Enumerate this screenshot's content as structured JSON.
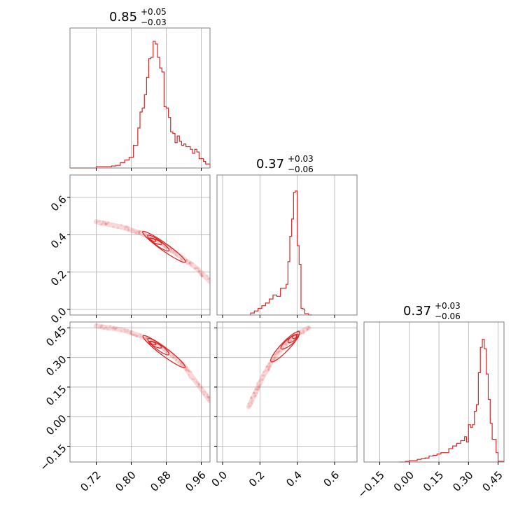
{
  "chart_data": {
    "type": "corner",
    "color": "#d62728",
    "grid": true,
    "titles": [
      {
        "value": "0.85",
        "plus": "+0.05",
        "minus": "−0.03"
      },
      {
        "value": "0.37",
        "plus": "+0.03",
        "minus": "−0.06"
      },
      {
        "value": "0.37",
        "plus": "+0.03",
        "minus": "−0.06"
      }
    ],
    "axes": [
      {
        "range": [
          0.66,
          0.98
        ],
        "ticks": [
          {
            "v": 0.72,
            "label": "0.72"
          },
          {
            "v": 0.8,
            "label": "0.80"
          },
          {
            "v": 0.88,
            "label": "0.88"
          },
          {
            "v": 0.96,
            "label": "0.96"
          }
        ]
      },
      {
        "range": [
          -0.03,
          0.72
        ],
        "ticks": [
          {
            "v": 0.0,
            "label": "0.0"
          },
          {
            "v": 0.2,
            "label": "0.2"
          },
          {
            "v": 0.4,
            "label": "0.4"
          },
          {
            "v": 0.6,
            "label": "0.6"
          }
        ]
      },
      {
        "range": [
          -0.23,
          0.48
        ],
        "ticks": [
          {
            "v": -0.15,
            "label": "−0.15"
          },
          {
            "v": 0.0,
            "label": "0.00"
          },
          {
            "v": 0.15,
            "label": "0.15"
          },
          {
            "v": 0.3,
            "label": "0.30"
          },
          {
            "v": 0.45,
            "label": "0.45"
          }
        ]
      }
    ],
    "histograms": [
      {
        "param": 0,
        "ymax": 1.05,
        "edges": [
          0.66,
          0.68,
          0.7,
          0.72,
          0.74,
          0.755,
          0.765,
          0.775,
          0.785,
          0.795,
          0.805,
          0.815,
          0.82,
          0.825,
          0.83,
          0.835,
          0.84,
          0.845,
          0.85,
          0.855,
          0.86,
          0.865,
          0.87,
          0.875,
          0.88,
          0.885,
          0.89,
          0.895,
          0.9,
          0.905,
          0.91,
          0.915,
          0.92,
          0.925,
          0.93,
          0.935,
          0.94,
          0.945,
          0.95,
          0.955,
          0.96,
          0.965,
          0.97,
          0.98
        ],
        "counts": [
          0.0,
          0.0,
          0.0,
          0.01,
          0.01,
          0.015,
          0.02,
          0.04,
          0.06,
          0.08,
          0.17,
          0.3,
          0.42,
          0.45,
          0.55,
          0.68,
          0.82,
          0.83,
          0.95,
          0.93,
          0.83,
          0.75,
          0.72,
          0.46,
          0.45,
          0.38,
          0.27,
          0.26,
          0.19,
          0.24,
          0.2,
          0.17,
          0.18,
          0.16,
          0.16,
          0.14,
          0.11,
          0.14,
          0.12,
          0.07,
          0.07,
          0.05,
          0.03
        ]
      },
      {
        "param": 1,
        "ymax": 1.05,
        "edges": [
          0.15,
          0.17,
          0.19,
          0.21,
          0.23,
          0.25,
          0.27,
          0.29,
          0.31,
          0.33,
          0.34,
          0.35,
          0.36,
          0.37,
          0.38,
          0.39,
          0.4,
          0.41,
          0.42,
          0.43,
          0.44,
          0.46,
          0.48
        ],
        "counts": [
          0.015,
          0.03,
          0.05,
          0.07,
          0.09,
          0.12,
          0.15,
          0.14,
          0.2,
          0.2,
          0.23,
          0.4,
          0.59,
          0.72,
          0.92,
          0.93,
          0.52,
          0.38,
          0.05,
          0.045,
          0.01,
          0.0
        ]
      },
      {
        "param": 2,
        "ymax": 1.05,
        "edges": [
          -0.05,
          -0.02,
          0.0,
          0.02,
          0.04,
          0.06,
          0.08,
          0.1,
          0.12,
          0.14,
          0.16,
          0.18,
          0.2,
          0.22,
          0.24,
          0.26,
          0.28,
          0.29,
          0.3,
          0.31,
          0.32,
          0.33,
          0.34,
          0.35,
          0.36,
          0.37,
          0.38,
          0.39,
          0.4,
          0.41,
          0.42,
          0.43,
          0.44,
          0.45,
          0.48
        ],
        "counts": [
          0.0,
          0.005,
          0.01,
          0.01,
          0.02,
          0.025,
          0.03,
          0.045,
          0.05,
          0.06,
          0.07,
          0.07,
          0.1,
          0.12,
          0.14,
          0.16,
          0.19,
          0.15,
          0.28,
          0.26,
          0.28,
          0.38,
          0.43,
          0.67,
          0.86,
          0.92,
          0.85,
          0.66,
          0.47,
          0.29,
          0.17,
          0.17,
          0.07,
          0.005
        ]
      }
    ],
    "joints": [
      {
        "x": 0,
        "y": 1,
        "ridge": [
          [
            0.72,
            0.47
          ],
          [
            0.78,
            0.44
          ],
          [
            0.82,
            0.41
          ],
          [
            0.86,
            0.37
          ],
          [
            0.89,
            0.32
          ],
          [
            0.92,
            0.27
          ],
          [
            0.95,
            0.22
          ],
          [
            0.98,
            0.15
          ]
        ],
        "contours": [
          {
            "center": [
              0.85,
              0.372
            ],
            "a": 0.007,
            "b": 0.006
          },
          {
            "center": [
              0.855,
              0.365
            ],
            "a": 0.016,
            "b": 0.01
          },
          {
            "center": [
              0.862,
              0.355
            ],
            "a": 0.03,
            "b": 0.015
          },
          {
            "center": [
              0.875,
              0.335
            ],
            "a": 0.06,
            "b": 0.02
          }
        ]
      },
      {
        "x": 0,
        "y": 2,
        "ridge": [
          [
            0.72,
            0.46
          ],
          [
            0.78,
            0.44
          ],
          [
            0.82,
            0.41
          ],
          [
            0.86,
            0.37
          ],
          [
            0.89,
            0.32
          ],
          [
            0.92,
            0.26
          ],
          [
            0.95,
            0.17
          ],
          [
            0.98,
            0.08
          ]
        ],
        "contours": [
          {
            "center": [
              0.85,
              0.372
            ],
            "a": 0.007,
            "b": 0.006
          },
          {
            "center": [
              0.855,
              0.365
            ],
            "a": 0.016,
            "b": 0.01
          },
          {
            "center": [
              0.862,
              0.355
            ],
            "a": 0.03,
            "b": 0.015
          },
          {
            "center": [
              0.875,
              0.33
            ],
            "a": 0.06,
            "b": 0.02
          }
        ]
      },
      {
        "x": 1,
        "y": 2,
        "ridge": [
          [
            0.14,
            0.05
          ],
          [
            0.18,
            0.13
          ],
          [
            0.22,
            0.21
          ],
          [
            0.27,
            0.29
          ],
          [
            0.31,
            0.34
          ],
          [
            0.36,
            0.39
          ],
          [
            0.4,
            0.42
          ],
          [
            0.46,
            0.45
          ]
        ],
        "contours": [
          {
            "center": [
              0.385,
              0.405
            ],
            "a": 0.012,
            "b": 0.008
          },
          {
            "center": [
              0.375,
              0.395
            ],
            "a": 0.03,
            "b": 0.012
          },
          {
            "center": [
              0.36,
              0.38
            ],
            "a": 0.06,
            "b": 0.016
          },
          {
            "center": [
              0.335,
              0.355
            ],
            "a": 0.11,
            "b": 0.022
          }
        ]
      }
    ]
  }
}
